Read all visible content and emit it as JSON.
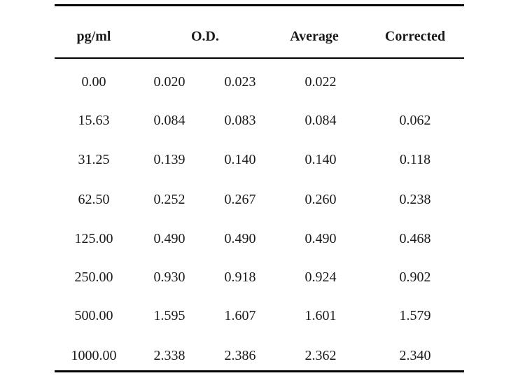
{
  "table": {
    "headers": {
      "concentration": "pg/ml",
      "od": "O.D.",
      "average": "Average",
      "corrected": "Corrected"
    },
    "rows": [
      {
        "concentration": "0.00",
        "od1": "0.020",
        "od2": "0.023",
        "average": "0.022",
        "corrected": ""
      },
      {
        "concentration": "15.63",
        "od1": "0.084",
        "od2": "0.083",
        "average": "0.084",
        "corrected": "0.062"
      },
      {
        "concentration": "31.25",
        "od1": "0.139",
        "od2": "0.140",
        "average": "0.140",
        "corrected": "0.118"
      },
      {
        "concentration": "62.50",
        "od1": "0.252",
        "od2": "0.267",
        "average": "0.260",
        "corrected": "0.238"
      },
      {
        "concentration": "125.00",
        "od1": "0.490",
        "od2": "0.490",
        "average": "0.490",
        "corrected": "0.468"
      },
      {
        "concentration": "250.00",
        "od1": "0.930",
        "od2": "0.918",
        "average": "0.924",
        "corrected": "0.902"
      },
      {
        "concentration": "500.00",
        "od1": "1.595",
        "od2": "1.607",
        "average": "1.601",
        "corrected": "1.579"
      },
      {
        "concentration": "1000.00",
        "od1": "2.338",
        "od2": "2.386",
        "average": "2.362",
        "corrected": "2.340"
      }
    ]
  }
}
